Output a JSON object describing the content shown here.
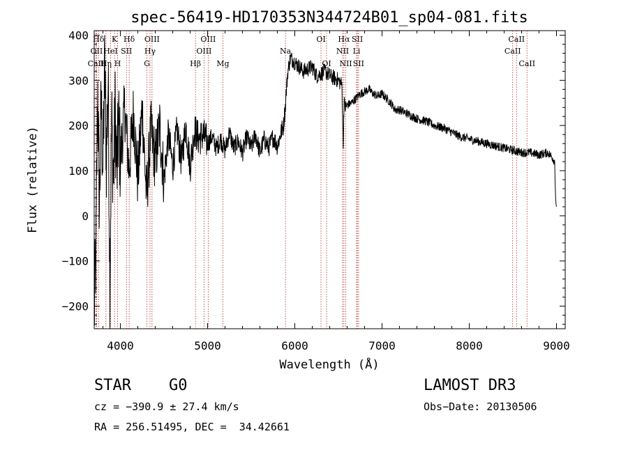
{
  "chart_data": {
    "type": "line",
    "title": "spec-56419-HD170353N344724B01_sp04-081.fits",
    "xlabel": "Wavelength (Å)",
    "ylabel": "Flux (relative)",
    "xlim": [
      3700,
      9100
    ],
    "ylim": [
      -250,
      410
    ],
    "xticks": [
      4000,
      5000,
      6000,
      7000,
      8000,
      9000
    ],
    "yticks": [
      -200,
      -100,
      0,
      100,
      200,
      300,
      400
    ],
    "series": [
      {
        "name": "flux",
        "x": [
          3700,
          3720,
          3740,
          3760,
          3780,
          3800,
          3820,
          3840,
          3860,
          3880,
          3900,
          3920,
          3940,
          3960,
          3980,
          4000,
          4050,
          4100,
          4150,
          4200,
          4250,
          4300,
          4350,
          4400,
          4450,
          4500,
          4550,
          4600,
          4650,
          4700,
          4750,
          4800,
          4850,
          4900,
          4950,
          5000,
          5050,
          5100,
          5150,
          5200,
          5250,
          5300,
          5350,
          5400,
          5450,
          5500,
          5550,
          5600,
          5650,
          5700,
          5750,
          5800,
          5850,
          5870,
          5890,
          5900,
          5920,
          5950,
          6000,
          6050,
          6100,
          6150,
          6200,
          6250,
          6300,
          6350,
          6400,
          6450,
          6500,
          6540,
          6555,
          6560,
          6565,
          6580,
          6600,
          6650,
          6700,
          6750,
          6800,
          6850,
          6900,
          6950,
          7000,
          7050,
          7100,
          7150,
          7200,
          7300,
          7400,
          7500,
          7600,
          7700,
          7800,
          7900,
          8000,
          8100,
          8200,
          8300,
          8400,
          8500,
          8600,
          8700,
          8800,
          8900,
          8950,
          8980,
          8990,
          9000
        ],
        "values": [
          -220,
          -80,
          280,
          20,
          250,
          100,
          330,
          130,
          300,
          -150,
          220,
          70,
          230,
          90,
          210,
          120,
          240,
          100,
          230,
          80,
          240,
          40,
          190,
          120,
          200,
          80,
          180,
          110,
          190,
          120,
          200,
          110,
          190,
          170,
          180,
          160,
          175,
          150,
          170,
          145,
          185,
          150,
          165,
          140,
          175,
          150,
          180,
          140,
          170,
          150,
          175,
          155,
          190,
          200,
          240,
          270,
          320,
          350,
          340,
          330,
          320,
          325,
          330,
          310,
          315,
          320,
          310,
          305,
          300,
          290,
          150,
          220,
          250,
          240,
          245,
          250,
          260,
          270,
          275,
          280,
          270,
          265,
          270,
          260,
          250,
          235,
          235,
          225,
          215,
          210,
          200,
          195,
          185,
          175,
          170,
          165,
          160,
          155,
          150,
          145,
          140,
          140,
          135,
          140,
          130,
          120,
          40,
          20
        ]
      }
    ],
    "lines_top": [
      {
        "label": "Hδ",
        "x": 3750
      },
      {
        "label": "K",
        "x": 3933
      },
      {
        "label": "Hδ",
        "x": 4101
      },
      {
        "label": "OIII",
        "x": 4363
      },
      {
        "label": "OIII",
        "x": 5007
      },
      {
        "label": "OI",
        "x": 6300
      },
      {
        "label": "Hα",
        "x": 6563
      },
      {
        "label": "SII",
        "x": 6717
      },
      {
        "label": "CaII",
        "x": 8542
      }
    ],
    "lines_mid": [
      {
        "label": "OII",
        "x": 3727
      },
      {
        "label": "HeI",
        "x": 3888
      },
      {
        "label": "SII",
        "x": 4070
      },
      {
        "label": "Hγ",
        "x": 4340
      },
      {
        "label": "OIII",
        "x": 4959
      },
      {
        "label": "Na",
        "x": 5893
      },
      {
        "label": "NII",
        "x": 6548
      },
      {
        "label": "Li",
        "x": 6708
      },
      {
        "label": "CaII",
        "x": 8498
      }
    ],
    "lines_bottom": [
      {
        "label": "CaII",
        "x": 3720
      },
      {
        "label": "Hη",
        "x": 3835
      },
      {
        "label": "H",
        "x": 3968
      },
      {
        "label": "G",
        "x": 4305
      },
      {
        "label": "Hβ",
        "x": 4861
      },
      {
        "label": "Mg",
        "x": 5175
      },
      {
        "label": "OI",
        "x": 6364
      },
      {
        "label": "NII",
        "x": 6584
      },
      {
        "label": "SII",
        "x": 6731
      },
      {
        "label": "CaII",
        "x": 8662
      }
    ]
  },
  "info": {
    "object_class": "STAR",
    "subclass": "G0",
    "survey": "LAMOST DR3",
    "cz": "cz = −390.9 ± 27.4 km/s",
    "obs_date": "Obs−Date: 20130506",
    "coords": "RA = 256.51495, DEC =  34.42661"
  }
}
